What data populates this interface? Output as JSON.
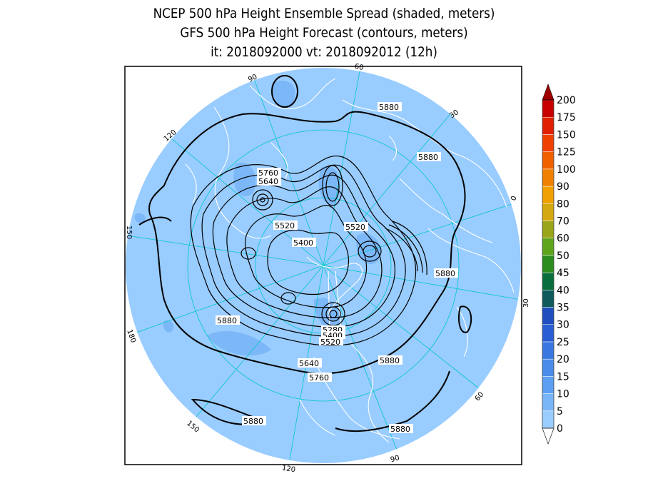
{
  "header": {
    "title_line1": "NCEP 500 hPa Height Ensemble Spread (shaded, meters)",
    "title_line2": "GFS 500 hPa Height Forecast (contours, meters)",
    "title_line3": "it: 2018092000       vt: 2018092012 (12h)"
  },
  "colors": {
    "background_shade": "#99ccff",
    "spread_5_10": "#73b0f0",
    "coastline": "#ffffff",
    "graticule": "#00c8c8",
    "contour": "#000000",
    "frame": "#000000"
  },
  "colorbar": {
    "levels": [
      "0",
      "5",
      "10",
      "15",
      "20",
      "25",
      "30",
      "35",
      "40",
      "45",
      "50",
      "60",
      "70",
      "80",
      "90",
      "100",
      "125",
      "150",
      "175",
      "200"
    ],
    "colors": [
      "#99ccff",
      "#79b6f7",
      "#5d9ff0",
      "#4a8ce8",
      "#3a78e0",
      "#2a5fd4",
      "#1f4fbf",
      "#0f5a5a",
      "#0a6e3c",
      "#2c8c1e",
      "#5fa51c",
      "#9aa51a",
      "#d4a810",
      "#f0a000",
      "#f08000",
      "#f06000",
      "#f04000",
      "#e02000",
      "#c80000",
      "#a00000"
    ]
  },
  "map": {
    "longitude_labels": [
      "60",
      "30",
      "0",
      "30",
      "60",
      "90",
      "120",
      "150",
      "180",
      "150",
      "120",
      "90"
    ],
    "contour_labels": [
      "5880",
      "5880",
      "5760",
      "5640",
      "5520",
      "5520",
      "5400",
      "5880",
      "5880",
      "5280",
      "5400",
      "5520",
      "5640",
      "5880",
      "5760",
      "5880",
      "5880"
    ]
  }
}
